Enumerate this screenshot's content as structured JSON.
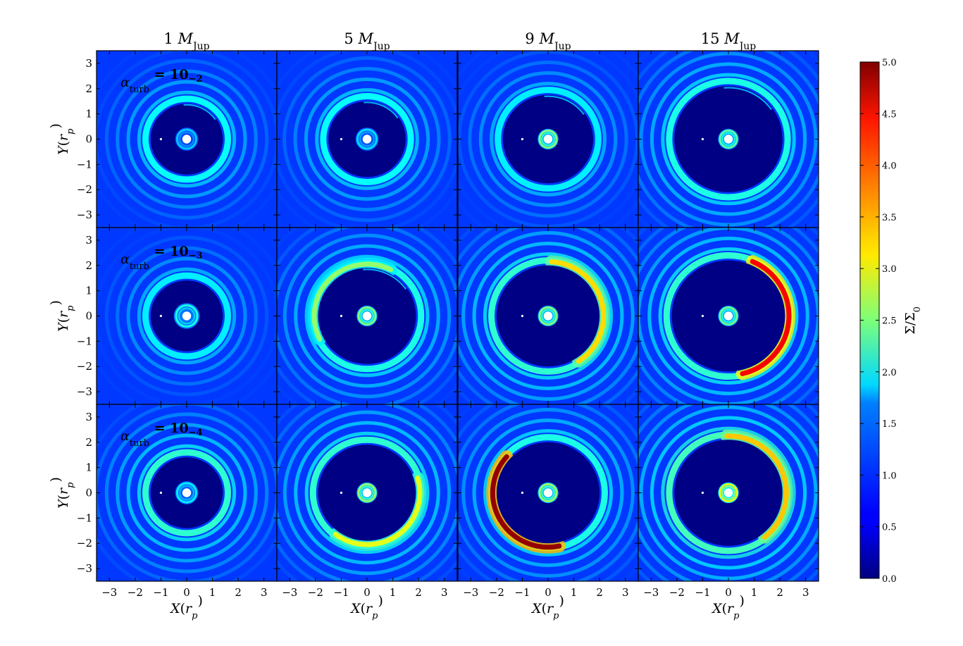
{
  "chart_data": {
    "type": "heatmap",
    "description_free_panel_grid": true,
    "columns": [
      {
        "title": "1 M_Jup",
        "title_main": "1 ",
        "title_var": "M",
        "title_sub": "Jup"
      },
      {
        "title": "5 M_Jup",
        "title_main": "5 ",
        "title_var": "M",
        "title_sub": "Jup"
      },
      {
        "title": "9 M_Jup",
        "title_main": "9 ",
        "title_var": "M",
        "title_sub": "Jup"
      },
      {
        "title": "15 M_Jup",
        "title_main": "15 ",
        "title_var": "M",
        "title_sub": "Jup"
      }
    ],
    "rows": [
      {
        "label": "α_turb = 10^-2",
        "sym": "α",
        "sub": "turb",
        "eq": " = 10",
        "exp": "−2"
      },
      {
        "label": "α_turb = 10^-3",
        "sym": "α",
        "sub": "turb",
        "eq": " = 10",
        "exp": "−3"
      },
      {
        "label": "α_turb = 10^-4",
        "sym": "α",
        "sub": "turb",
        "eq": " = 10",
        "exp": "−4"
      }
    ],
    "xlabel": "X(r_p)",
    "ylabel": "Y(r_p)",
    "xlabel_parts": {
      "var": "X",
      "open": "(",
      "r": "r",
      "sub": "p",
      "close": ")"
    },
    "ylabel_parts": {
      "var": "Y",
      "open": "(",
      "r": "r",
      "sub": "p",
      "close": ")"
    },
    "xlim": [
      -3.5,
      3.5
    ],
    "ylim": [
      -3.5,
      3.5
    ],
    "ticks": [
      -3,
      -2,
      -1,
      0,
      1,
      2,
      3
    ],
    "tick_labels": [
      "−3",
      "−2",
      "−1",
      "0",
      "1",
      "2",
      "3"
    ],
    "colorbar": {
      "label": "Σ/Σ0",
      "label_main": "Σ/Σ",
      "label_sub": "0",
      "range": [
        0.0,
        5.0
      ],
      "ticks": [
        0.0,
        0.5,
        1.0,
        1.5,
        2.0,
        2.5,
        3.0,
        3.5,
        4.0,
        4.5,
        5.0
      ],
      "tick_labels": [
        "0.0",
        "0.5",
        "1.0",
        "1.5",
        "2.0",
        "2.5",
        "3.0",
        "3.5",
        "4.0",
        "4.5",
        "5.0"
      ],
      "colormap": "jet"
    },
    "panels": [
      [
        {
          "gap_radius": 1.4,
          "inner_level": 1.6,
          "inner_radius": 0.45,
          "ring_peak": 1.9,
          "vortex_level": 0,
          "vortex_angle": 0,
          "planet_arc": true
        },
        {
          "gap_radius": 1.5,
          "inner_level": 1.7,
          "inner_radius": 0.45,
          "ring_peak": 1.9,
          "vortex_level": 0,
          "vortex_angle": 0,
          "planet_arc": true
        },
        {
          "gap_radius": 1.75,
          "inner_level": 2.5,
          "inner_radius": 0.4,
          "ring_peak": 1.8,
          "vortex_level": 0,
          "vortex_angle": 0,
          "planet_arc": true
        },
        {
          "gap_radius": 2.1,
          "inner_level": 2.3,
          "inner_radius": 0.4,
          "ring_peak": 2.0,
          "vortex_level": 0,
          "vortex_angle": 0,
          "planet_arc": true
        }
      ],
      [
        {
          "gap_radius": 1.4,
          "inner_level": 2.0,
          "inner_radius": 0.5,
          "ring_peak": 1.8,
          "vortex_level": 0,
          "vortex_angle": 0,
          "planet_arc": false
        },
        {
          "gap_radius": 1.9,
          "inner_level": 2.5,
          "inner_radius": 0.4,
          "ring_peak": 2.0,
          "vortex_level": 2.6,
          "vortex_angle": 135,
          "planet_arc": true
        },
        {
          "gap_radius": 2.0,
          "inner_level": 2.5,
          "inner_radius": 0.4,
          "ring_peak": 2.1,
          "vortex_level": 3.3,
          "vortex_angle": 15,
          "planet_arc": false
        },
        {
          "gap_radius": 2.2,
          "inner_level": 2.4,
          "inner_radius": 0.4,
          "ring_peak": 2.1,
          "vortex_level": 4.4,
          "vortex_angle": -5,
          "planet_arc": false
        }
      ],
      [
        {
          "gap_radius": 1.4,
          "inner_level": 1.8,
          "inner_radius": 0.45,
          "ring_peak": 2.1,
          "vortex_level": 0,
          "vortex_angle": 0,
          "planet_arc": false
        },
        {
          "gap_radius": 1.9,
          "inner_level": 2.6,
          "inner_radius": 0.4,
          "ring_peak": 2.1,
          "vortex_level": 3.0,
          "vortex_angle": -55,
          "planet_arc": false
        },
        {
          "gap_radius": 2.0,
          "inner_level": 2.6,
          "inner_radius": 0.4,
          "ring_peak": 2.0,
          "vortex_level": 4.9,
          "vortex_angle": -150,
          "planet_arc": false
        },
        {
          "gap_radius": 2.1,
          "inner_level": 3.0,
          "inner_radius": 0.4,
          "ring_peak": 2.2,
          "vortex_level": 3.4,
          "vortex_angle": 20,
          "planet_arc": false
        }
      ]
    ]
  }
}
